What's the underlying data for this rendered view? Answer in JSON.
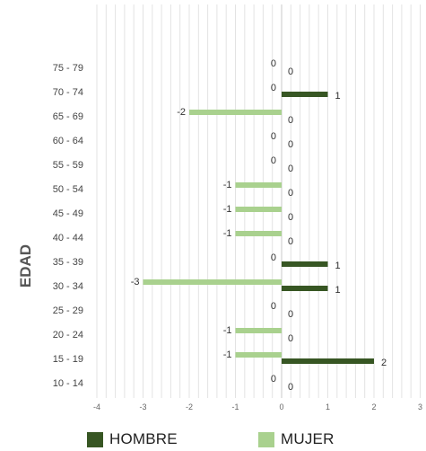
{
  "chart_data": {
    "type": "bar",
    "orientation": "horizontal",
    "title": "",
    "ylabel": "EDAD",
    "xlabel": "",
    "xlim": [
      -4,
      3
    ],
    "x_ticks": [
      "-4",
      "-3",
      "-2",
      "-1",
      "0",
      "1",
      "2",
      "3"
    ],
    "grid": true,
    "legend_placement": "bottom",
    "categories": [
      "75 - 79",
      "70 - 74",
      "65 - 69",
      "60 - 64",
      "55 - 59",
      "50 - 54",
      "45 - 49",
      "40 - 44",
      "35 - 39",
      "30 - 34",
      "25 - 29",
      "20 - 24",
      "15 - 19",
      "10 - 14"
    ],
    "series": [
      {
        "name": "HOMBRE",
        "color": "#375623",
        "values": [
          0,
          1,
          0,
          0,
          0,
          0,
          0,
          0,
          1,
          1,
          0,
          0,
          2,
          0
        ]
      },
      {
        "name": "MUJER",
        "color": "#a9d18e",
        "values": [
          0,
          0,
          -2,
          0,
          0,
          -1,
          -1,
          -1,
          0,
          -3,
          0,
          -1,
          -1,
          0
        ]
      }
    ]
  }
}
